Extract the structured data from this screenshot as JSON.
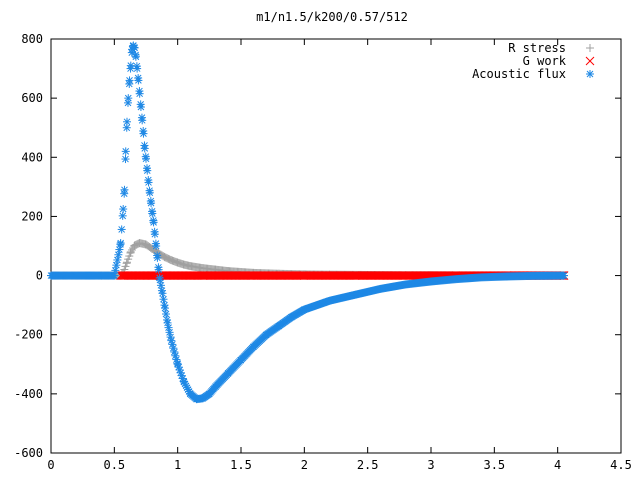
{
  "chart_data": {
    "type": "scatter",
    "title": "m1/n1.5/k200/0.57/512",
    "xlabel": "",
    "ylabel": "",
    "xlim": [
      0,
      4.5
    ],
    "ylim": [
      -600,
      800
    ],
    "x_ticks": [
      0,
      0.5,
      1,
      1.5,
      2,
      2.5,
      3,
      3.5,
      4,
      4.5
    ],
    "x_tick_labels": [
      "0",
      "0.5",
      "1",
      "1.5",
      "2",
      "2.5",
      "3",
      "3.5",
      "4",
      "4.5"
    ],
    "y_ticks": [
      -600,
      -400,
      -200,
      0,
      200,
      400,
      600,
      800
    ],
    "y_tick_labels": [
      "-600",
      "-400",
      "-200",
      "0",
      "200",
      "400",
      "600",
      "800"
    ],
    "grid": false,
    "legend_position": "top-right",
    "series": [
      {
        "name": "R stress",
        "color": "#a0a0a0",
        "marker": "plus",
        "points": [
          [
            0.0,
            0
          ],
          [
            0.2,
            0
          ],
          [
            0.4,
            0
          ],
          [
            0.55,
            0
          ],
          [
            0.57,
            10
          ],
          [
            0.6,
            45
          ],
          [
            0.63,
            80
          ],
          [
            0.66,
            102
          ],
          [
            0.7,
            110
          ],
          [
            0.75,
            105
          ],
          [
            0.8,
            90
          ],
          [
            0.85,
            75
          ],
          [
            0.9,
            62
          ],
          [
            0.95,
            52
          ],
          [
            1.0,
            44
          ],
          [
            1.05,
            37
          ],
          [
            1.1,
            32
          ],
          [
            1.2,
            25
          ],
          [
            1.3,
            20
          ],
          [
            1.4,
            15
          ],
          [
            1.5,
            12
          ],
          [
            1.6,
            9
          ],
          [
            1.8,
            6
          ],
          [
            2.0,
            4
          ],
          [
            2.2,
            3
          ],
          [
            2.5,
            2
          ],
          [
            2.8,
            1
          ],
          [
            3.0,
            1
          ],
          [
            3.3,
            0
          ],
          [
            3.6,
            0
          ],
          [
            4.05,
            0
          ]
        ]
      },
      {
        "name": "G work",
        "color": "#ff0000",
        "marker": "cross",
        "points": [
          [
            0.55,
            0
          ],
          [
            0.8,
            0
          ],
          [
            1.2,
            0
          ],
          [
            1.6,
            0
          ],
          [
            2.0,
            0
          ],
          [
            2.4,
            0
          ],
          [
            2.8,
            0
          ],
          [
            3.2,
            0
          ],
          [
            3.6,
            0
          ],
          [
            4.05,
            0
          ]
        ]
      },
      {
        "name": "Acoustic flux",
        "color": "#1e88e5",
        "marker": "star",
        "points": [
          [
            0.0,
            0
          ],
          [
            0.2,
            0
          ],
          [
            0.4,
            0
          ],
          [
            0.5,
            0
          ],
          [
            0.55,
            110
          ],
          [
            0.57,
            225
          ],
          [
            0.58,
            290
          ],
          [
            0.59,
            420
          ],
          [
            0.6,
            520
          ],
          [
            0.61,
            600
          ],
          [
            0.62,
            660
          ],
          [
            0.63,
            710
          ],
          [
            0.64,
            765
          ],
          [
            0.65,
            778
          ],
          [
            0.66,
            770
          ],
          [
            0.67,
            740
          ],
          [
            0.68,
            700
          ],
          [
            0.69,
            660
          ],
          [
            0.7,
            615
          ],
          [
            0.71,
            570
          ],
          [
            0.72,
            525
          ],
          [
            0.73,
            480
          ],
          [
            0.74,
            430
          ],
          [
            0.75,
            395
          ],
          [
            0.76,
            355
          ],
          [
            0.77,
            315
          ],
          [
            0.78,
            280
          ],
          [
            0.79,
            245
          ],
          [
            0.8,
            210
          ],
          [
            0.81,
            180
          ],
          [
            0.82,
            140
          ],
          [
            0.83,
            100
          ],
          [
            0.84,
            60
          ],
          [
            0.85,
            20
          ],
          [
            0.86,
            -15
          ],
          [
            0.88,
            -60
          ],
          [
            0.9,
            -110
          ],
          [
            0.92,
            -160
          ],
          [
            0.95,
            -220
          ],
          [
            1.0,
            -300
          ],
          [
            1.05,
            -360
          ],
          [
            1.1,
            -400
          ],
          [
            1.15,
            -418
          ],
          [
            1.2,
            -415
          ],
          [
            1.25,
            -400
          ],
          [
            1.3,
            -375
          ],
          [
            1.4,
            -330
          ],
          [
            1.5,
            -285
          ],
          [
            1.6,
            -240
          ],
          [
            1.7,
            -200
          ],
          [
            1.8,
            -170
          ],
          [
            1.9,
            -140
          ],
          [
            2.0,
            -115
          ],
          [
            2.2,
            -85
          ],
          [
            2.4,
            -65
          ],
          [
            2.6,
            -45
          ],
          [
            2.8,
            -30
          ],
          [
            3.0,
            -20
          ],
          [
            3.2,
            -12
          ],
          [
            3.4,
            -6
          ],
          [
            3.6,
            -3
          ],
          [
            3.8,
            -1
          ],
          [
            4.05,
            0
          ]
        ]
      }
    ]
  }
}
